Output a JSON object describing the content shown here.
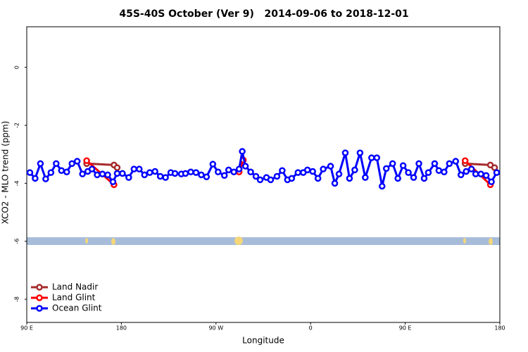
{
  "chart_data": {
    "type": "line",
    "title": "45S-40S October (Ver 9)   2014-09-06 to 2018-12-01",
    "x_label": "Longitude",
    "y_label": "XCO2 - MLO trend (ppm)",
    "xlim": [
      90,
      540
    ],
    "xticks": [
      {
        "value": 90,
        "label": "90 E"
      },
      {
        "value": 180,
        "label": "180"
      },
      {
        "value": 270,
        "label": "90 W"
      },
      {
        "value": 360,
        "label": "0"
      },
      {
        "value": 450,
        "label": "90 E"
      },
      {
        "value": 540,
        "label": "180"
      }
    ],
    "ylim": [
      -8.8,
      1.4
    ],
    "yticks": [
      0,
      -2,
      -4,
      -6,
      -8
    ],
    "legend": "bottom left",
    "series": [
      {
        "name": "Land Nadir",
        "color": "#a52a2a",
        "x": [
          147,
          173,
          176,
          null,
          507,
          531,
          535
        ],
        "values": [
          -3.32,
          -3.37,
          -3.46,
          null,
          -3.32,
          -3.37,
          -3.46
        ]
      },
      {
        "name": "Land Glint",
        "color": "#ff0000",
        "x": [
          147,
          173,
          null,
          292,
          296,
          null,
          507,
          531
        ],
        "values": [
          -3.22,
          -4.05,
          null,
          -3.61,
          -3.2,
          null,
          -3.22,
          -4.05
        ]
      },
      {
        "name": "Ocean Glint",
        "color": "#0000ff",
        "x": [
          93,
          98,
          103,
          108,
          113,
          118,
          123,
          128,
          133,
          138,
          143,
          148,
          152,
          157,
          162,
          167,
          172,
          176,
          181,
          187,
          192,
          197,
          202,
          207,
          212,
          217,
          222,
          227,
          231,
          237,
          241,
          246,
          251,
          256,
          261,
          267,
          272,
          278,
          282,
          287,
          292,
          295,
          298,
          303,
          308,
          312,
          318,
          322,
          328,
          333,
          338,
          342,
          348,
          353,
          357,
          362,
          367,
          372,
          379,
          383,
          387,
          393,
          397,
          402,
          407,
          412,
          418,
          423,
          428,
          432,
          438,
          443,
          448,
          453,
          458,
          463,
          468,
          472,
          478,
          482,
          487,
          492,
          498,
          503,
          508,
          513,
          517,
          522,
          527,
          532,
          537
        ],
        "values": [
          -3.63,
          -3.83,
          -3.32,
          -3.85,
          -3.63,
          -3.32,
          -3.56,
          -3.61,
          -3.32,
          -3.24,
          -3.68,
          -3.59,
          -3.51,
          -3.71,
          -3.68,
          -3.71,
          -3.95,
          -3.66,
          -3.66,
          -3.8,
          -3.51,
          -3.51,
          -3.71,
          -3.63,
          -3.59,
          -3.76,
          -3.8,
          -3.63,
          -3.66,
          -3.68,
          -3.66,
          -3.61,
          -3.63,
          -3.71,
          -3.78,
          -3.34,
          -3.61,
          -3.73,
          -3.54,
          -3.61,
          -3.51,
          -2.9,
          -3.41,
          -3.61,
          -3.76,
          -3.88,
          -3.8,
          -3.88,
          -3.76,
          -3.56,
          -3.88,
          -3.83,
          -3.63,
          -3.63,
          -3.54,
          -3.59,
          -3.83,
          -3.51,
          -3.41,
          -4.0,
          -3.68,
          -2.95,
          -3.83,
          -3.54,
          -2.95,
          -3.8,
          -3.12,
          -3.12,
          -4.1,
          -3.49,
          -3.32,
          -3.83,
          -3.39,
          -3.63,
          -3.8,
          -3.32,
          -3.83,
          -3.63,
          -3.32,
          -3.56,
          -3.61,
          -3.32,
          -3.24,
          -3.71,
          -3.59,
          -3.51,
          -3.68,
          -3.68,
          -3.73,
          -3.95,
          -3.63
        ]
      }
    ]
  }
}
